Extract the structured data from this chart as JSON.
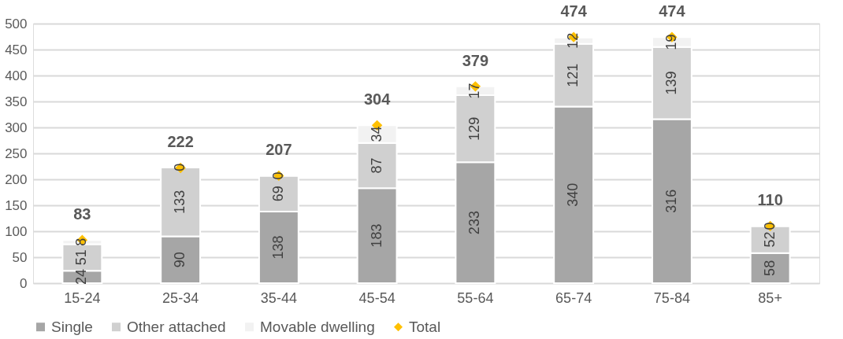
{
  "chart_data": {
    "type": "bar",
    "stacked": true,
    "categories": [
      "15-24",
      "25-34",
      "35-44",
      "45-54",
      "55-64",
      "65-74",
      "75-84",
      "85+"
    ],
    "series": [
      {
        "name": "Single",
        "color": "#a6a6a6",
        "values": [
          24,
          90,
          138,
          183,
          233,
          340,
          316,
          58
        ]
      },
      {
        "name": "Other attached",
        "color": "#d0d0d0",
        "values": [
          51,
          133,
          69,
          87,
          129,
          121,
          139,
          52
        ]
      },
      {
        "name": "Movable dwelling",
        "color": "#f2f2f2",
        "values": [
          8,
          0,
          0,
          34,
          17,
          12,
          19,
          0
        ]
      },
      {
        "name": "Total",
        "type": "scatter",
        "color": "#ffc000",
        "marker": "diamond",
        "x": [
          "15-24",
          "25-34",
          "35-44",
          "45-54",
          "55-64",
          "65-74",
          "75-84",
          "85+"
        ],
        "values": [
          83,
          222,
          207,
          304,
          379,
          474,
          474,
          110
        ]
      }
    ],
    "ylim": [
      0,
      500
    ],
    "yticks": [
      0,
      50,
      100,
      150,
      200,
      250,
      300,
      350,
      400,
      450,
      500
    ],
    "grid": "y",
    "legend": "bottom",
    "data_labels": true
  }
}
